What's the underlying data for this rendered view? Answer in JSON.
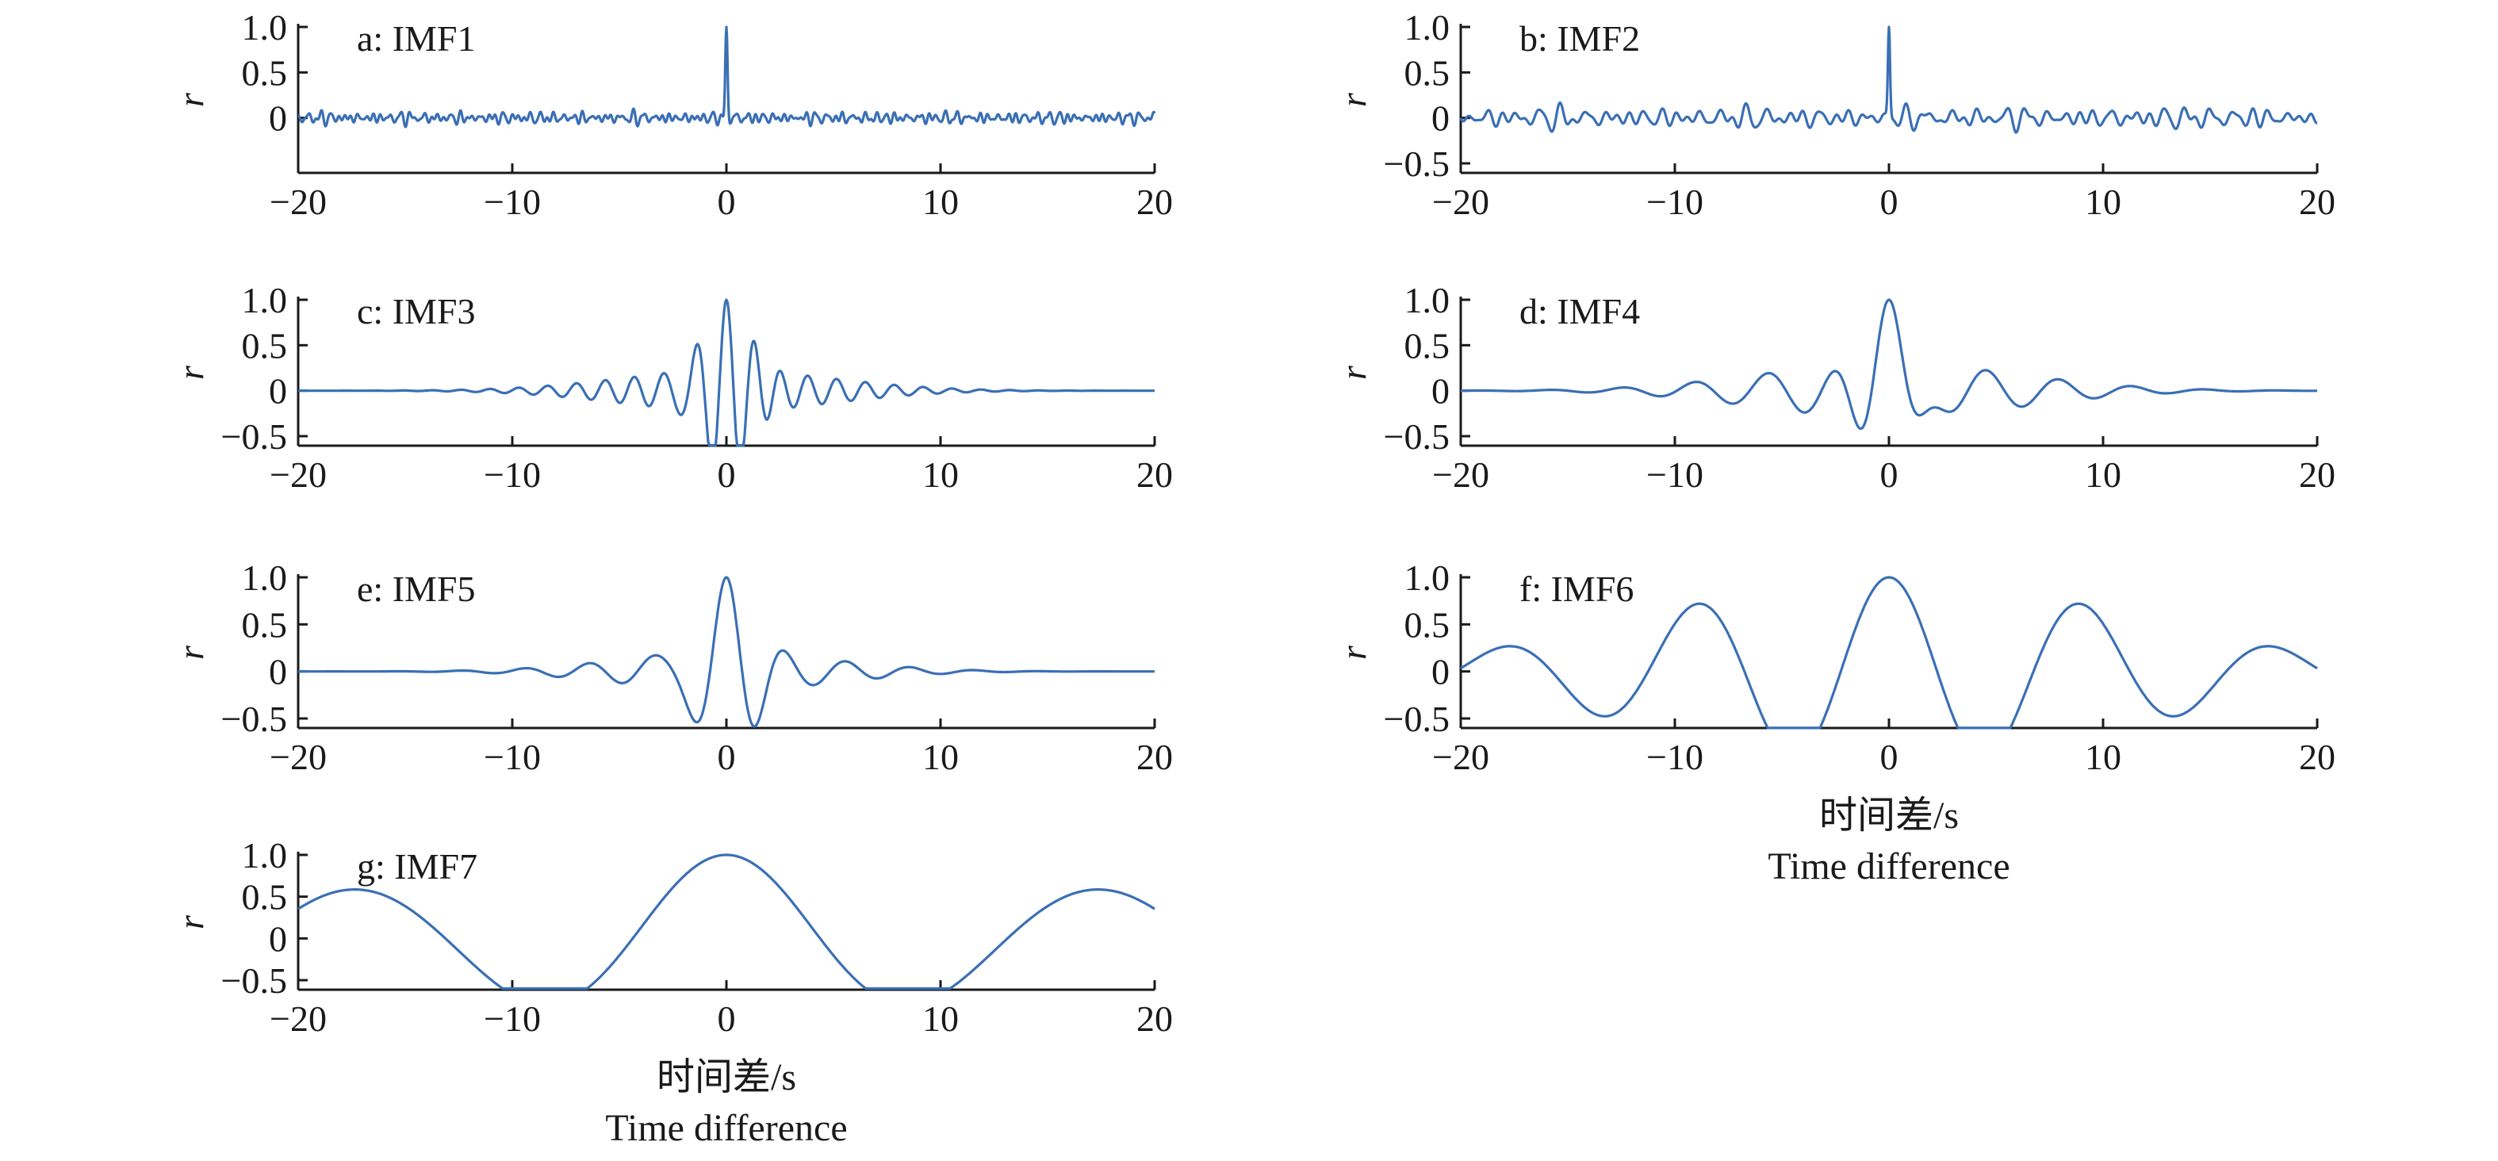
{
  "colors": {
    "series": "#3a6fb5",
    "axis": "#1a1a1a"
  },
  "chart_data": [
    {
      "type": "line",
      "panel_label": "a: IMF1",
      "ylabel": "r",
      "xlim": [
        -20,
        20
      ],
      "ylim": [
        -0.5,
        1.0
      ],
      "xticks": [
        -20,
        -10,
        0,
        10,
        20
      ],
      "xtick_labels": [
        "−20",
        "−10",
        "0",
        "10",
        "20"
      ],
      "yticks": [
        0,
        0.5,
        1.0
      ],
      "ytick_labels": [
        "0",
        "0.5",
        "1.0"
      ],
      "xlabel": "",
      "series": [
        {
          "model": "noise",
          "period": 0.45,
          "decay": 0.8,
          "bump": 0.02,
          "amp": 0.07,
          "trough": -0.3,
          "values_note_free": true
        }
      ]
    },
    {
      "type": "line",
      "panel_label": "b: IMF2",
      "ylabel": "r",
      "xlim": [
        -20,
        20
      ],
      "ylim": [
        -0.5,
        1.0
      ],
      "xticks": [
        -20,
        -10,
        0,
        10,
        20
      ],
      "xtick_labels": [
        "−20",
        "−10",
        "0",
        "10",
        "20"
      ],
      "yticks": [
        -0.5,
        0,
        0.5,
        1.0
      ],
      "ytick_labels": [
        "−0.5",
        "0",
        "0.5",
        "1.0"
      ],
      "xlabel": "",
      "series": [
        {
          "model": "noise",
          "period": 0.9,
          "decay": 1.0,
          "bump": 0.02,
          "amp": 0.12,
          "trough": -0.45
        }
      ]
    },
    {
      "type": "line",
      "panel_label": "c: IMF3",
      "ylabel": "r",
      "xlim": [
        -20,
        20
      ],
      "ylim": [
        -0.5,
        1.0
      ],
      "xticks": [
        -20,
        -10,
        0,
        10,
        20
      ],
      "xtick_labels": [
        "−20",
        "−10",
        "0",
        "10",
        "20"
      ],
      "yticks": [
        -0.5,
        0,
        0.5,
        1.0
      ],
      "ytick_labels": [
        "−0.5",
        "0",
        "0.5",
        "1.0"
      ],
      "xlabel": "",
      "series": [
        {
          "model": "wavelet",
          "period": 1.35,
          "decay": 1.1,
          "env": 5.0,
          "amp": 0.22,
          "trough": -0.5
        }
      ]
    },
    {
      "type": "line",
      "panel_label": "d: IMF4",
      "ylabel": "r",
      "xlim": [
        -20,
        20
      ],
      "ylim": [
        -0.5,
        1.0
      ],
      "xticks": [
        -20,
        -10,
        0,
        10,
        20
      ],
      "xtick_labels": [
        "−20",
        "−10",
        "0",
        "10",
        "20"
      ],
      "yticks": [
        -0.5,
        0,
        0.5,
        1.0
      ],
      "ytick_labels": [
        "−0.5",
        "0",
        "0.5",
        "1.0"
      ],
      "xlabel": "",
      "series": [
        {
          "model": "wavelet",
          "period": 3.4,
          "decay": 1.15,
          "env": 6.0,
          "amp": 0.3,
          "trough": -0.6
        }
      ]
    },
    {
      "type": "line",
      "panel_label": "e: IMF5",
      "ylabel": "r",
      "xlim": [
        -20,
        20
      ],
      "ylim": [
        -0.5,
        1.0
      ],
      "xticks": [
        -20,
        -10,
        0,
        10,
        20
      ],
      "xtick_labels": [
        "−20",
        "−10",
        "0",
        "10",
        "20"
      ],
      "yticks": [
        -0.5,
        0,
        0.5,
        1.0
      ],
      "ytick_labels": [
        "−0.5",
        "0",
        "0.5",
        "1.0"
      ],
      "xlabel": "",
      "series": [
        {
          "model": "wavelet",
          "period": 3.0,
          "decay": 1.2,
          "env": 5.0,
          "amp": 0.2,
          "trough": -0.6
        }
      ]
    },
    {
      "type": "line",
      "panel_label": "f: IMF6",
      "ylabel": "r",
      "xlim": [
        -20,
        20
      ],
      "ylim": [
        -0.5,
        1.0
      ],
      "xticks": [
        -20,
        -10,
        0,
        10,
        20
      ],
      "xtick_labels": [
        "−20",
        "−10",
        "0",
        "10",
        "20"
      ],
      "yticks": [
        -0.5,
        0,
        0.5,
        1.0
      ],
      "ytick_labels": [
        "−0.5",
        "0",
        "0.5",
        "1.0"
      ],
      "xlabel": "时间差/s",
      "xlabel_en": "Time difference",
      "series": [
        {
          "model": "smooth",
          "period": 9.0,
          "env": 11.0
        }
      ]
    },
    {
      "type": "line",
      "panel_label": "g: IMF7",
      "ylabel": "r",
      "xlim": [
        -20,
        20
      ],
      "ylim": [
        -0.5,
        1.0
      ],
      "xticks": [
        -20,
        -10,
        0,
        10,
        20
      ],
      "xtick_labels": [
        "−20",
        "−10",
        "0",
        "10",
        "20"
      ],
      "yticks": [
        -0.5,
        0,
        0.5,
        1.0
      ],
      "ytick_labels": [
        "−0.5",
        "0",
        "0.5",
        "1.0"
      ],
      "xlabel": "时间差/s",
      "xlabel_en": "Time difference",
      "series": [
        {
          "model": "smooth",
          "period": 17.5,
          "env": 18.0
        }
      ]
    }
  ]
}
